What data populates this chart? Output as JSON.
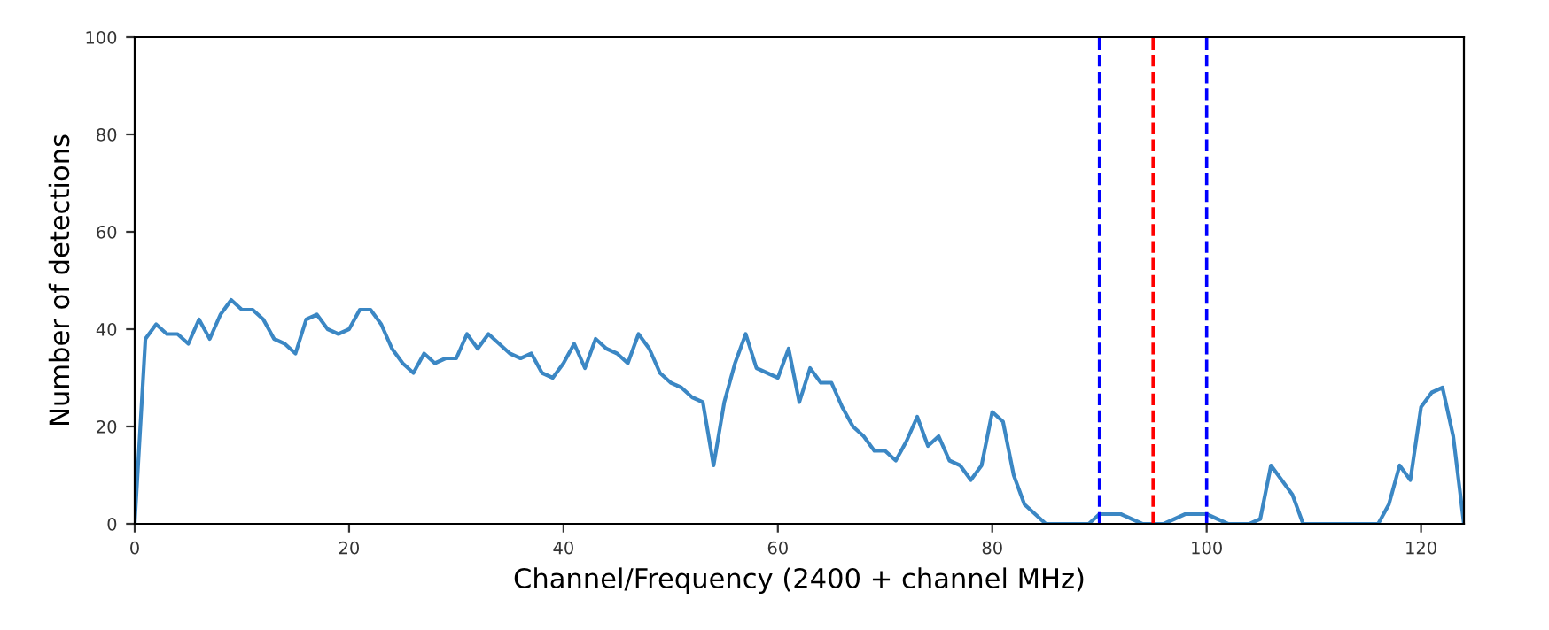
{
  "chart_data": {
    "type": "line",
    "xlabel": "Channel/Frequency (2400 + channel MHz)",
    "ylabel": "Number of detections",
    "x": [
      0,
      1,
      2,
      3,
      4,
      5,
      6,
      7,
      8,
      9,
      10,
      11,
      12,
      13,
      14,
      15,
      16,
      17,
      18,
      19,
      20,
      21,
      22,
      23,
      24,
      25,
      26,
      27,
      28,
      29,
      30,
      31,
      32,
      33,
      34,
      35,
      36,
      37,
      38,
      39,
      40,
      41,
      42,
      43,
      44,
      45,
      46,
      47,
      48,
      49,
      50,
      51,
      52,
      53,
      54,
      55,
      56,
      57,
      58,
      59,
      60,
      61,
      62,
      63,
      64,
      65,
      66,
      67,
      68,
      69,
      70,
      71,
      72,
      73,
      74,
      75,
      76,
      77,
      78,
      79,
      80,
      81,
      82,
      83,
      84,
      85,
      86,
      87,
      88,
      89,
      90,
      91,
      92,
      93,
      94,
      95,
      96,
      97,
      98,
      99,
      100,
      101,
      102,
      103,
      104,
      105,
      106,
      107,
      108,
      109,
      110,
      111,
      112,
      113,
      114,
      115,
      116,
      117,
      118,
      119,
      120,
      121,
      122,
      123,
      124
    ],
    "series": [
      {
        "color": "#3b87c4",
        "values": [
          0,
          38,
          41,
          39,
          39,
          37,
          42,
          38,
          43,
          46,
          44,
          44,
          42,
          38,
          37,
          35,
          42,
          43,
          40,
          39,
          40,
          44,
          44,
          41,
          36,
          33,
          31,
          35,
          33,
          34,
          34,
          39,
          36,
          39,
          37,
          35,
          34,
          35,
          31,
          30,
          33,
          37,
          32,
          38,
          36,
          35,
          33,
          39,
          36,
          31,
          29,
          28,
          26,
          25,
          12,
          25,
          33,
          39,
          32,
          31,
          30,
          36,
          25,
          32,
          29,
          29,
          24,
          20,
          18,
          15,
          15,
          13,
          17,
          22,
          16,
          18,
          13,
          12,
          9,
          12,
          23,
          21,
          10,
          4,
          2,
          0,
          0,
          0,
          0,
          0,
          2,
          2,
          2,
          1,
          0,
          0,
          0,
          1,
          2,
          2,
          2,
          1,
          0,
          0,
          0,
          1,
          12,
          9,
          6,
          0,
          0,
          0,
          0,
          0,
          0,
          0,
          0,
          4,
          12,
          9,
          24,
          27,
          28,
          18,
          0
        ]
      }
    ],
    "xlim": [
      0,
      124
    ],
    "ylim": [
      0,
      100
    ],
    "xticks": [
      0,
      20,
      40,
      60,
      80,
      100,
      120
    ],
    "yticks": [
      0,
      20,
      40,
      60,
      80,
      100
    ],
    "ref_lines": [
      {
        "axis": "x",
        "value": 90,
        "color": "#0000ff",
        "line_style": "dashed"
      },
      {
        "axis": "x",
        "value": 95,
        "color": "#ff0000",
        "line_style": "dashed"
      },
      {
        "axis": "x",
        "value": 100,
        "color": "#0000ff",
        "line_style": "dashed"
      }
    ],
    "grid": false,
    "legend": false
  }
}
